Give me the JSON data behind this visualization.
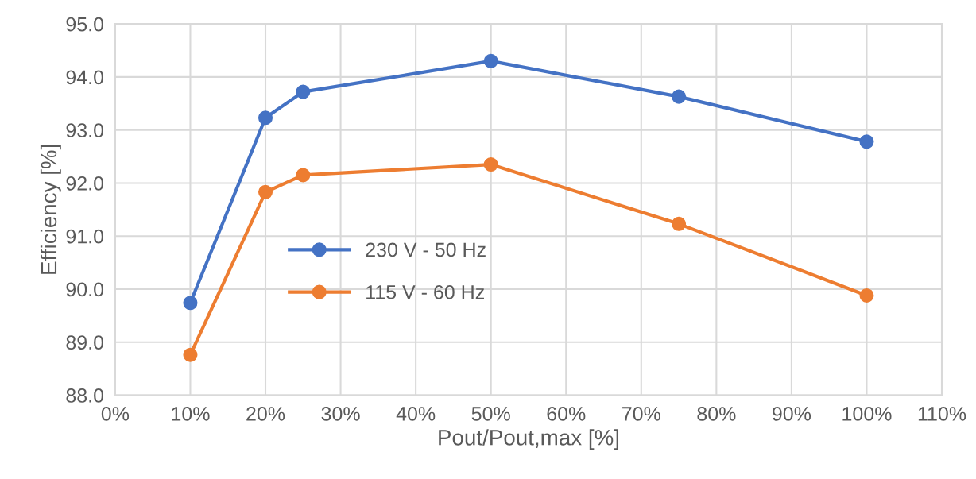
{
  "chart_data": {
    "type": "line",
    "xlabel": "Pout/Pout,max [%]",
    "ylabel": "Efficiency [%]",
    "x": [
      10,
      20,
      25,
      50,
      75,
      100
    ],
    "series": [
      {
        "name": "230 V - 50 Hz",
        "color": "#4472c4",
        "values": [
          89.74,
          93.23,
          93.72,
          94.3,
          93.63,
          92.78
        ]
      },
      {
        "name": "115 V - 60 Hz",
        "color": "#ed7d31",
        "values": [
          88.76,
          91.83,
          92.15,
          92.35,
          91.23,
          89.88
        ]
      }
    ],
    "xlim": [
      0,
      110
    ],
    "xticks": [
      {
        "value": 0,
        "label": "0%"
      },
      {
        "value": 10,
        "label": "10%"
      },
      {
        "value": 20,
        "label": "20%"
      },
      {
        "value": 30,
        "label": "30%"
      },
      {
        "value": 40,
        "label": "40%"
      },
      {
        "value": 50,
        "label": "50%"
      },
      {
        "value": 60,
        "label": "60%"
      },
      {
        "value": 70,
        "label": "70%"
      },
      {
        "value": 80,
        "label": "80%"
      },
      {
        "value": 90,
        "label": "90%"
      },
      {
        "value": 100,
        "label": "100%"
      },
      {
        "value": 110,
        "label": "110%"
      }
    ],
    "ylim": [
      88,
      95
    ],
    "yticks": [
      {
        "value": 88,
        "label": "88.0"
      },
      {
        "value": 89,
        "label": "89.0"
      },
      {
        "value": 90,
        "label": "90.0"
      },
      {
        "value": 91,
        "label": "91.0"
      },
      {
        "value": 92,
        "label": "92.0"
      },
      {
        "value": 93,
        "label": "93.0"
      },
      {
        "value": 94,
        "label": "94.0"
      },
      {
        "value": 95,
        "label": "95.0"
      }
    ],
    "grid": true,
    "legend": "center",
    "marker": "circle",
    "line_style": "solid"
  }
}
